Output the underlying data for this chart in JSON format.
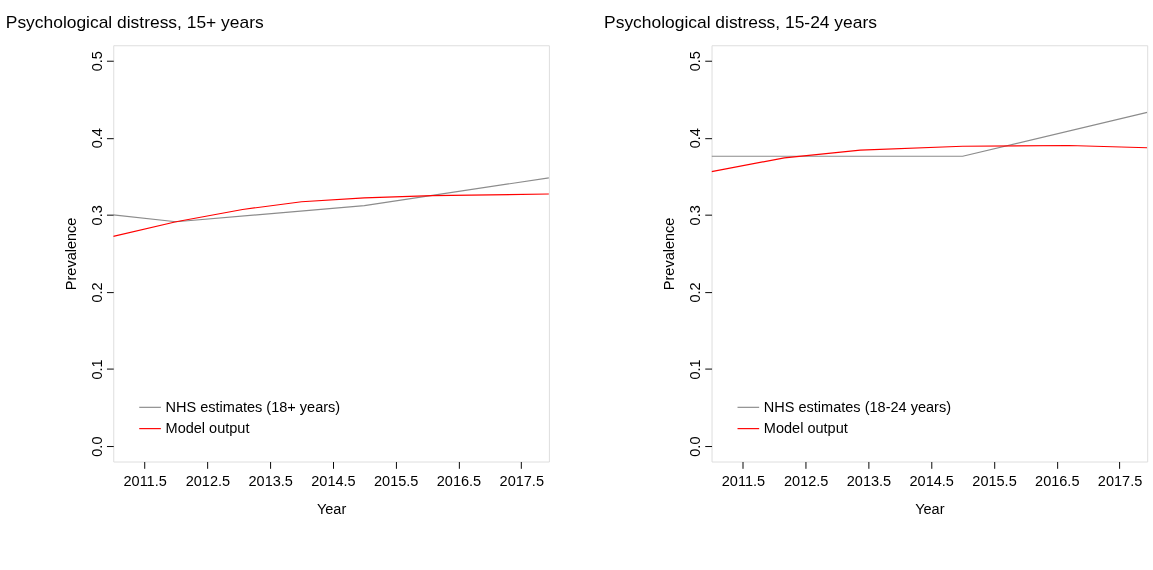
{
  "chart_data": [
    {
      "type": "line",
      "title": "Psychological distress, 15+ years",
      "xlabel": "Year",
      "ylabel": "Prevalence",
      "xlim": [
        2011,
        2017.94
      ],
      "ylim": [
        -0.02,
        0.52
      ],
      "xticks": [
        2011.5,
        2012.5,
        2013.5,
        2014.5,
        2015.5,
        2016.5,
        2017.5
      ],
      "yticks": [
        {
          "value": 0,
          "label": "0.0"
        },
        0.1,
        0.2,
        0.3,
        0.4,
        0.5
      ],
      "grid": false,
      "legend": "bottom left",
      "series": [
        {
          "name": "NHS estimates (18+ years)",
          "color": "#8c8c8c",
          "x": [
            2011,
            2012,
            2015,
            2017.94
          ],
          "values": [
            0.3,
            0.291,
            0.312,
            0.348
          ]
        },
        {
          "name": "Model output",
          "color": "#ff0000",
          "x": [
            2011,
            2012,
            2013.06,
            2014,
            2015,
            2016.08,
            2017.94
          ],
          "values": [
            0.272,
            0.291,
            0.307,
            0.317,
            0.322,
            0.325,
            0.327
          ]
        }
      ]
    },
    {
      "type": "line",
      "title": "Psychological distress, 15-24 years",
      "xlabel": "Year",
      "ylabel": "Prevalence",
      "xlim": [
        2011,
        2017.94
      ],
      "ylim": [
        -0.02,
        0.52
      ],
      "xticks": [
        2011.5,
        2012.5,
        2013.5,
        2014.5,
        2015.5,
        2016.5,
        2017.5
      ],
      "yticks": [
        {
          "value": 0,
          "label": "0.0"
        },
        0.1,
        0.2,
        0.3,
        0.4,
        0.5
      ],
      "grid": false,
      "legend": "bottom left",
      "series": [
        {
          "name": "NHS estimates (18-24 years)",
          "color": "#8c8c8c",
          "x": [
            2011,
            2015,
            2017.94
          ],
          "values": [
            0.376,
            0.376,
            0.433
          ]
        },
        {
          "name": "Model output",
          "color": "#ff0000",
          "x": [
            2011,
            2012.16,
            2013.37,
            2015,
            2016.69,
            2017.94
          ],
          "values": [
            0.356,
            0.374,
            0.384,
            0.389,
            0.39,
            0.387
          ]
        }
      ]
    }
  ]
}
